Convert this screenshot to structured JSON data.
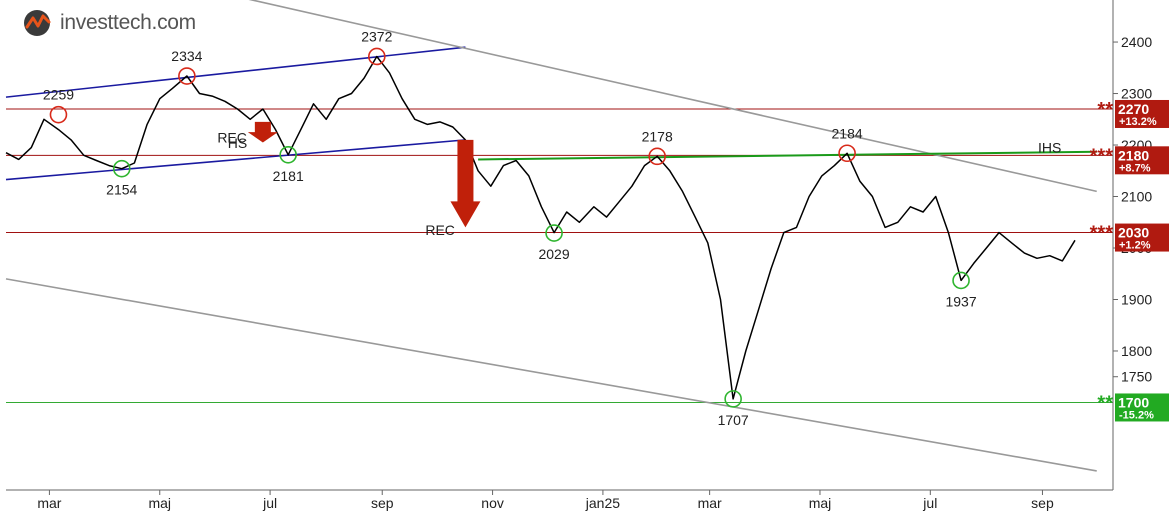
{
  "logo": {
    "brand": "investtech.com",
    "icon": "investtech-logo-icon",
    "brand_color": "#e8541a"
  },
  "chart_data": {
    "type": "line",
    "title": "",
    "xlabel": "",
    "ylabel": "",
    "ylim": [
      1530,
      2470
    ],
    "y_ticks": [
      "2400",
      "2300",
      "2200",
      "2100",
      "2000",
      "1900",
      "1800",
      "1750"
    ],
    "x_ticks": [
      "mar",
      "maj",
      "jul",
      "sep",
      "nov",
      "jan25",
      "mar",
      "maj",
      "jul",
      "sep"
    ],
    "x_tick_dates": [
      "2024-03-01",
      "2024-05-01",
      "2024-07-01",
      "2024-09-01",
      "2024-11-01",
      "2025-01-01",
      "2025-03-01",
      "2025-05-01",
      "2025-07-01",
      "2025-09-01"
    ],
    "xlim": [
      "2024-02-06",
      "2025-10-10"
    ],
    "grid": false,
    "colors": {
      "price": "#000000",
      "price_up": "#1aa31a",
      "price_down": "#c0200a",
      "trend_channel": "#1a1aa0",
      "trend_gray": "#999999",
      "resistance": "#a01010",
      "support": "#33aa33",
      "hs_neckline": "#1a9a1a"
    },
    "series": [
      {
        "x": [
          "2024-02-06",
          "2024-02-13",
          "2024-02-20",
          "2024-02-27",
          "2024-03-06",
          "2024-03-13",
          "2024-03-20",
          "2024-03-27",
          "2024-04-03",
          "2024-04-10",
          "2024-04-17",
          "2024-04-24",
          "2024-05-01",
          "2024-05-08",
          "2024-05-16",
          "2024-05-23",
          "2024-05-30",
          "2024-06-06",
          "2024-06-13",
          "2024-06-20",
          "2024-06-27",
          "2024-07-04",
          "2024-07-11",
          "2024-07-18",
          "2024-07-25",
          "2024-08-01",
          "2024-08-08",
          "2024-08-15",
          "2024-08-22",
          "2024-08-29",
          "2024-09-05",
          "2024-09-12",
          "2024-09-19",
          "2024-09-26",
          "2024-10-03",
          "2024-10-10",
          "2024-10-17",
          "2024-10-24",
          "2024-10-31",
          "2024-11-07",
          "2024-11-14",
          "2024-11-21",
          "2024-11-28",
          "2024-12-05",
          "2024-12-12",
          "2024-12-19",
          "2024-12-27",
          "2025-01-03",
          "2025-01-10",
          "2025-01-17",
          "2025-01-24",
          "2025-01-31",
          "2025-02-07",
          "2025-02-14",
          "2025-02-21",
          "2025-02-28",
          "2025-03-07",
          "2025-03-14",
          "2025-03-21",
          "2025-03-28",
          "2025-04-04",
          "2025-04-11",
          "2025-04-18",
          "2025-04-25",
          "2025-05-02",
          "2025-05-09",
          "2025-05-16",
          "2025-05-23",
          "2025-05-30",
          "2025-06-06",
          "2025-06-13",
          "2025-06-20",
          "2025-06-27",
          "2025-07-04",
          "2025-07-11",
          "2025-07-18",
          "2025-07-25",
          "2025-08-01",
          "2025-08-08",
          "2025-08-15",
          "2025-08-22",
          "2025-08-29",
          "2025-09-05",
          "2025-09-12",
          "2025-09-19"
        ],
        "y": [
          2185,
          2172,
          2195,
          2250,
          2230,
          2210,
          2180,
          2170,
          2160,
          2154,
          2165,
          2240,
          2290,
          2310,
          2334,
          2300,
          2295,
          2285,
          2270,
          2250,
          2270,
          2230,
          2181,
          2230,
          2280,
          2250,
          2290,
          2300,
          2330,
          2372,
          2340,
          2290,
          2250,
          2240,
          2245,
          2235,
          2210,
          2150,
          2120,
          2160,
          2170,
          2140,
          2080,
          2030,
          2070,
          2050,
          2080,
          2060,
          2090,
          2120,
          2160,
          2178,
          2150,
          2110,
          2060,
          2010,
          1900,
          1707,
          1800,
          1880,
          1960,
          2030,
          2040,
          2100,
          2140,
          2160,
          2184,
          2130,
          2100,
          2040,
          2050,
          2080,
          2070,
          2100,
          2030,
          1937,
          1970,
          2000,
          2030,
          2010,
          1990,
          1980,
          1985,
          1975,
          2015
        ]
      }
    ],
    "extremes": [
      {
        "label": "2259",
        "x": "2024-03-06",
        "y": 2259,
        "kind": "top"
      },
      {
        "label": "2154",
        "x": "2024-04-10",
        "y": 2154,
        "kind": "bottom"
      },
      {
        "label": "2334",
        "x": "2024-05-16",
        "y": 2334,
        "kind": "top"
      },
      {
        "label": "2181",
        "x": "2024-07-11",
        "y": 2181,
        "kind": "bottom"
      },
      {
        "label": "2372",
        "x": "2024-08-29",
        "y": 2372,
        "kind": "top"
      },
      {
        "label": "2029",
        "x": "2024-12-05",
        "y": 2029,
        "kind": "bottom"
      },
      {
        "label": "2178",
        "x": "2025-01-31",
        "y": 2178,
        "kind": "top"
      },
      {
        "label": "1707",
        "x": "2025-03-14",
        "y": 1707,
        "kind": "bottom"
      },
      {
        "label": "2184",
        "x": "2025-05-16",
        "y": 2184,
        "kind": "top"
      },
      {
        "label": "1937",
        "x": "2025-07-18",
        "y": 1937,
        "kind": "bottom"
      }
    ],
    "levels": [
      {
        "value": 2270,
        "label": "2270",
        "stars": "**",
        "pct": "+13.2%",
        "kind": "resistance"
      },
      {
        "value": 2180,
        "label": "2180",
        "stars": "***",
        "pct": "+8.7%",
        "kind": "resistance"
      },
      {
        "value": 2030,
        "label": "2030",
        "stars": "***",
        "pct": "+1.2%",
        "kind": "resistance"
      },
      {
        "value": 1700,
        "label": "1700",
        "stars": "**",
        "pct": "-15.2%",
        "kind": "support"
      }
    ],
    "trend_lines": [
      {
        "name": "channel-upper",
        "kind": "trend_channel",
        "from": [
          "2024-02-06",
          2293
        ],
        "to": [
          "2024-10-17",
          2390
        ]
      },
      {
        "name": "channel-lower",
        "kind": "trend_channel",
        "from": [
          "2024-02-06",
          2133
        ],
        "to": [
          "2024-10-17",
          2210
        ]
      },
      {
        "name": "falling-upper",
        "kind": "trend_gray",
        "from": [
          "2024-02-06",
          2590
        ],
        "to": [
          "2025-10-01",
          2110
        ]
      },
      {
        "name": "falling-lower",
        "kind": "trend_gray",
        "from": [
          "2024-02-06",
          1940
        ],
        "to": [
          "2025-10-01",
          1567
        ]
      },
      {
        "name": "hs-neckline",
        "kind": "hs_neckline",
        "from": [
          "2024-10-24",
          2172
        ],
        "to": [
          "2025-10-01",
          2187
        ]
      }
    ],
    "annotations": [
      {
        "text": "REC",
        "x": "2024-06-10",
        "y": 2205
      },
      {
        "text": "HS",
        "x": "2024-06-13",
        "y": 2194
      },
      {
        "text": "REC",
        "x": "2024-10-03",
        "y": 2025
      },
      {
        "text": "IHS",
        "x": "2025-09-05",
        "y": 2185
      }
    ],
    "signals": [
      {
        "x": "2024-06-27",
        "from": 2245,
        "to": 2205,
        "direction": "down"
      },
      {
        "x": "2024-10-17",
        "from": 2210,
        "to": 2040,
        "direction": "down"
      }
    ]
  }
}
